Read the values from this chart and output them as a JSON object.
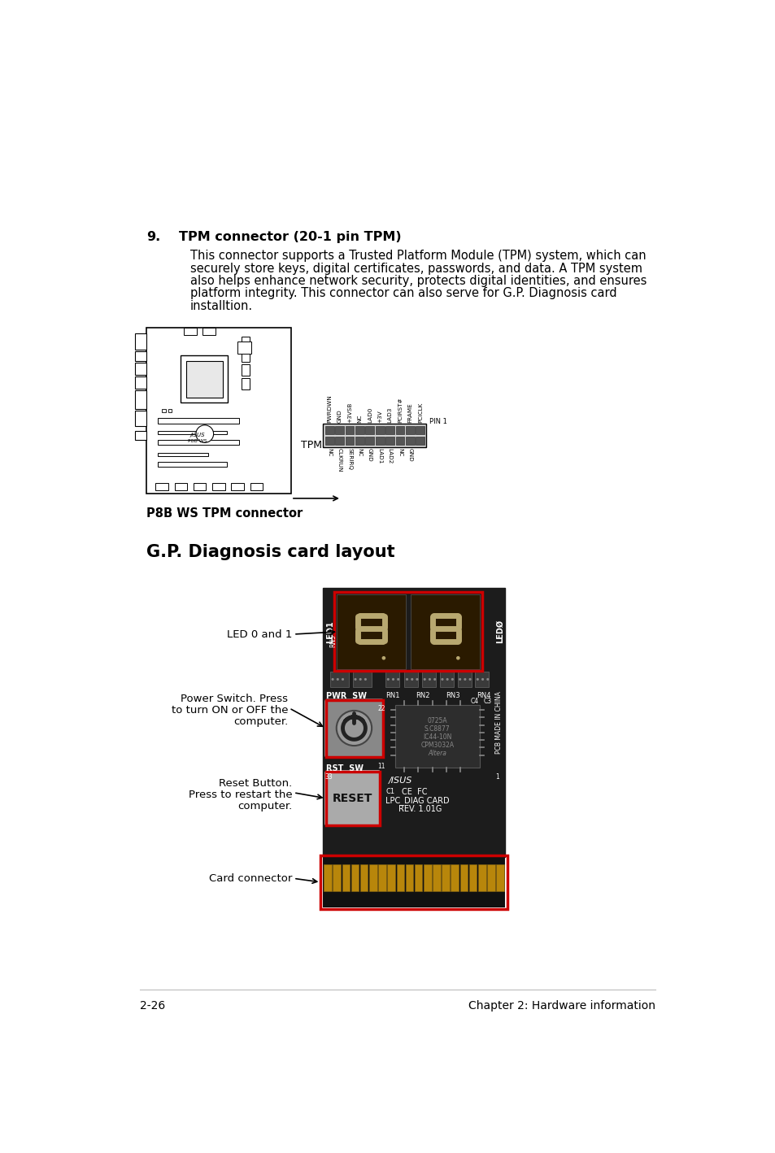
{
  "bg_color": "#ffffff",
  "section_num": "9.",
  "section_title": "TPM connector (20-1 pin TPM)",
  "body_text_lines": [
    "This connector supports a Trusted Platform Module (TPM) system, which can",
    "securely store keys, digital certificates, passwords, and data. A TPM system",
    "also helps enhance network security, protects digital identities, and ensures",
    "platform integrity. This connector can also serve for G.P. Diagnosis card",
    "installtion."
  ],
  "tpm_caption": "P8B WS TPM connector",
  "gp_section_title": "G.P. Diagnosis card layout",
  "label_led01": "LED 0 and 1",
  "label_pwr_line1": "Power Switch. Press",
  "label_pwr_line2": "to turn ON or OFF the",
  "label_pwr_line3": "computer.",
  "label_rst_line1": "Reset Button.",
  "label_rst_line2": "Press to restart the",
  "label_rst_line3": "computer.",
  "label_card": "Card connector",
  "footer_left": "2-26",
  "footer_right": "Chapter 2: Hardware information",
  "top_pin_labels": [
    "PWRDWN",
    "GND",
    "+3VSB",
    "NC",
    "LAD0",
    "+3V",
    "LAD3",
    "PCIRST#",
    "FRAME",
    "PCICLK"
  ],
  "bot_pin_labels": [
    "NC",
    "CLKRUN",
    "SERIRQ",
    "NC",
    "GND",
    "LAD1",
    "LAD2",
    "NC",
    "GND"
  ],
  "title_fontsize": 11.5,
  "body_fontsize": 10.5,
  "caption_fontsize": 10.5,
  "gp_title_fontsize": 15,
  "label_fontsize": 9.5,
  "footer_fontsize": 10
}
